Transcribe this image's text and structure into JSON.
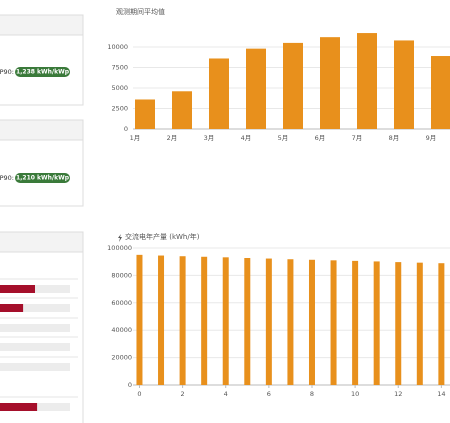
{
  "panels": [
    {
      "label": "P90:",
      "badge": "1,238 kWh/kWp"
    },
    {
      "label": "P90:",
      "badge": "1,210 kWh/kWp"
    }
  ],
  "progress": {
    "values": [
      50,
      33,
      0,
      0,
      0,
      53
    ],
    "color": "#a50f2b"
  },
  "chart_data": [
    {
      "type": "bar",
      "subtitle": "观测期间平均值",
      "color": "#e8901c",
      "categories": [
        "1月",
        "2月",
        "3月",
        "4月",
        "5月",
        "6月",
        "7月",
        "8月",
        "9月"
      ],
      "values": [
        3600,
        4600,
        8600,
        9800,
        10500,
        11200,
        11700,
        10800,
        8900
      ],
      "ylim": [
        0,
        12000
      ],
      "yticks": [
        0,
        2500,
        5000,
        7500,
        10000
      ],
      "grid": true
    },
    {
      "type": "numeric-bar",
      "title": "交流电年产量 (kWh/年)",
      "color": "#e8901c",
      "x": [
        0,
        1,
        2,
        3,
        4,
        5,
        6,
        7,
        8,
        9,
        10,
        11,
        12,
        13,
        14
      ],
      "values": [
        95000,
        94500,
        94000,
        93600,
        93200,
        92700,
        92300,
        91800,
        91400,
        91000,
        90600,
        90200,
        89700,
        89300,
        88900
      ],
      "xlim": [
        -0.3,
        14.4
      ],
      "xticks": [
        0,
        2,
        4,
        6,
        8,
        10,
        12,
        14
      ],
      "ylim": [
        0,
        100000
      ],
      "yticks": [
        0,
        20000,
        40000,
        60000,
        80000,
        100000
      ],
      "grid": true
    }
  ]
}
